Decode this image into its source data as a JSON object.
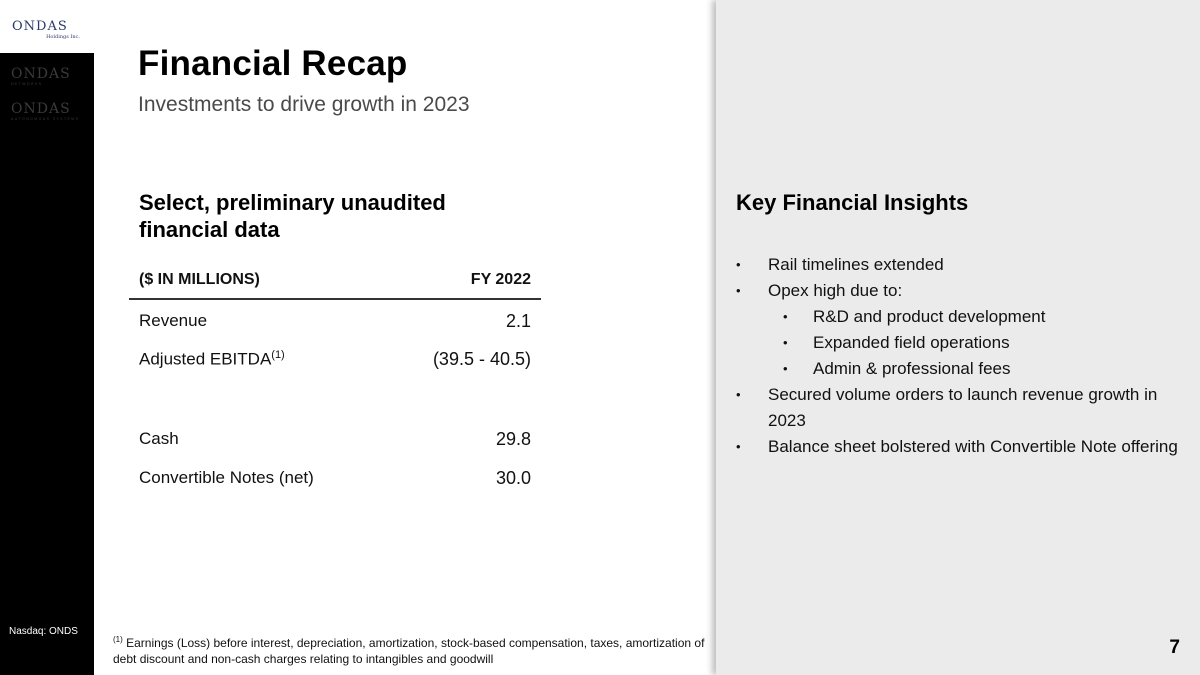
{
  "logo": {
    "top_word": "ONDAS",
    "top_sub": "Holdings Inc.",
    "rail_logos": [
      {
        "word": "ONDAS",
        "sub": "NETWORKS"
      },
      {
        "word": "ONDAS",
        "sub": "AUTONOMOUS SYSTEMS"
      }
    ]
  },
  "nasdaq": "Nasdaq: ONDS",
  "title": "Financial Recap",
  "subtitle": "Investments to drive growth in 2023",
  "table": {
    "heading": "Select, preliminary unaudited financial data",
    "header_label": "($ IN MILLIONS)",
    "header_value": "FY 2022",
    "rows": [
      {
        "label": "Revenue",
        "sup": "",
        "value": "2.1"
      },
      {
        "label": "Adjusted EBITDA",
        "sup": "(1)",
        "value": "(39.5 - 40.5)"
      },
      {
        "label": "Cash",
        "sup": "",
        "value": "29.8"
      },
      {
        "label": "Convertible Notes (net)",
        "sup": "",
        "value": "30.0"
      }
    ]
  },
  "footnote": {
    "marker": "(1)",
    "text": "Earnings (Loss) before interest, depreciation, amortization, stock-based compensation, taxes, amortization of debt discount and non-cash charges relating to intangibles and goodwill"
  },
  "insights": {
    "title": "Key Financial Insights",
    "bullet_char": "•",
    "items": [
      {
        "text": "Rail timelines extended"
      },
      {
        "text": "Opex high due to:"
      },
      {
        "text": "R&D and product development"
      },
      {
        "text": "Expanded field operations"
      },
      {
        "text": "Admin & professional fees"
      },
      {
        "text": "Secured volume orders to launch revenue growth in 2023"
      },
      {
        "text": "Balance sheet bolstered with Convertible Note offering"
      }
    ]
  },
  "page_number": "7",
  "colors": {
    "rail": "#000000",
    "panel": "#ebebeb",
    "logo_blue": "#2a3a6a"
  }
}
